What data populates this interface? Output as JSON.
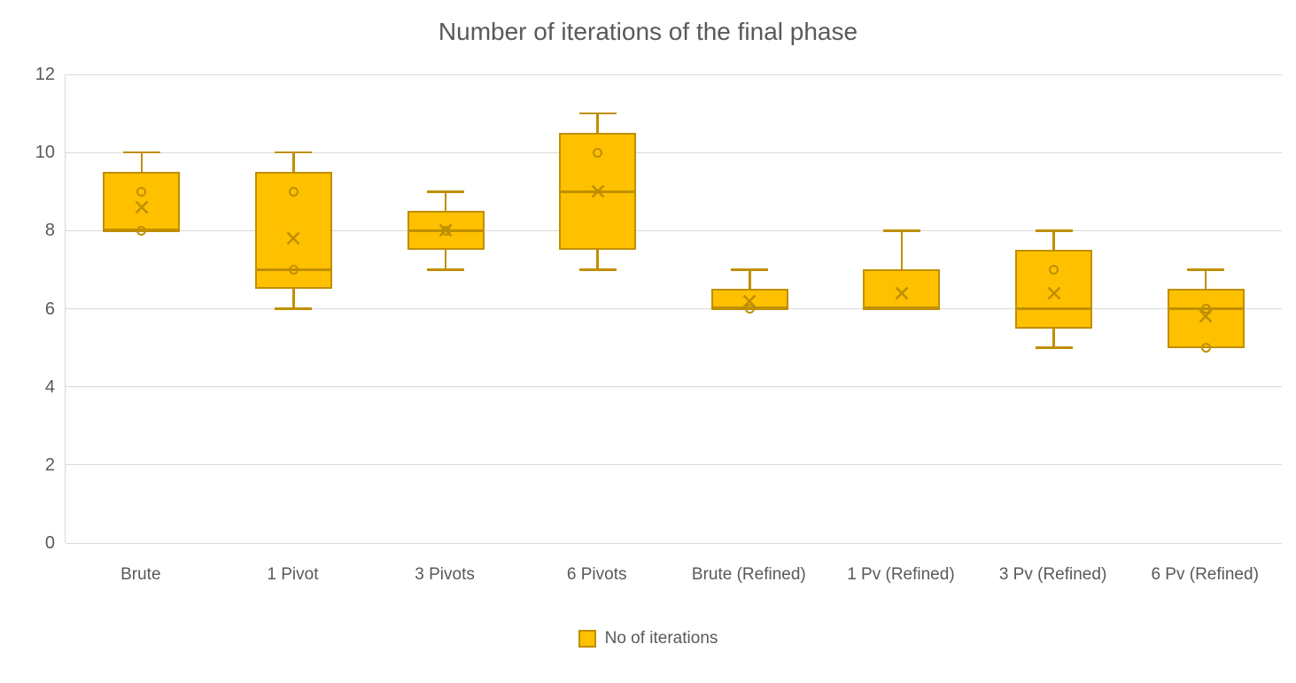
{
  "chart_data": {
    "type": "boxplot",
    "title": "Number of iterations of the final phase",
    "categories": [
      "Brute",
      "1 Pivot",
      "3 Pivots",
      "6 Pivots",
      "Brute (Refined)",
      "1 Pv (Refined)",
      "3 Pv (Refined)",
      "6 Pv (Refined)"
    ],
    "series": [
      {
        "name": "No of iterations",
        "boxes": [
          {
            "category": "Brute",
            "min": 8,
            "q1": 8,
            "median": 8,
            "q3": 9.5,
            "max": 10,
            "mean": 8.6,
            "points": [
              9,
              8
            ]
          },
          {
            "category": "1 Pivot",
            "min": 6,
            "q1": 6.5,
            "median": 7,
            "q3": 9.5,
            "max": 10,
            "mean": 7.8,
            "points": [
              9,
              7
            ]
          },
          {
            "category": "3 Pivots",
            "min": 7,
            "q1": 7.5,
            "median": 8,
            "q3": 8.5,
            "max": 9,
            "mean": 8.0,
            "points": [
              8
            ]
          },
          {
            "category": "6 Pivots",
            "min": 7,
            "q1": 7.5,
            "median": 9,
            "q3": 10.5,
            "max": 11,
            "mean": 9.0,
            "points": [
              10
            ]
          },
          {
            "category": "Brute (Refined)",
            "min": 6,
            "q1": 6,
            "median": 6,
            "q3": 6.5,
            "max": 7,
            "mean": 6.2,
            "points": [
              6
            ]
          },
          {
            "category": "1 Pv (Refined)",
            "min": 6,
            "q1": 6,
            "median": 6,
            "q3": 7,
            "max": 8,
            "mean": 6.4,
            "points": []
          },
          {
            "category": "3 Pv (Refined)",
            "min": 5,
            "q1": 5.5,
            "median": 6,
            "q3": 7.5,
            "max": 8,
            "mean": 6.4,
            "points": [
              7
            ]
          },
          {
            "category": "6 Pv (Refined)",
            "min": 5,
            "q1": 5,
            "median": 6,
            "q3": 6.5,
            "max": 7,
            "mean": 5.8,
            "points": [
              6,
              5
            ]
          }
        ]
      }
    ],
    "ylim": [
      0,
      12
    ],
    "yticks": [
      0,
      2,
      4,
      6,
      8,
      10,
      12
    ],
    "grid": true,
    "legend_position": "bottom",
    "colors": {
      "box_fill": "#FFC000",
      "box_border": "#BF8F00",
      "marker": "#BF8F00",
      "grid": "#D9D9D9",
      "text": "#595959"
    }
  }
}
